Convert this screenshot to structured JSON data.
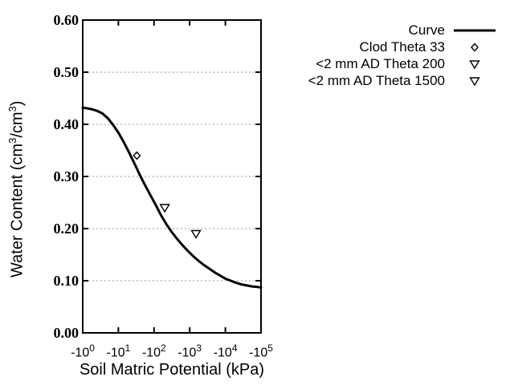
{
  "figure": {
    "background": "#ffffff",
    "axis_color": "#000000",
    "grid_color": "#999999",
    "curve_color": "#000000"
  },
  "axes": {
    "x_title": "Soil Matric Potential (kPa)",
    "y_title_parts": {
      "pre": "Water Content (cm",
      "sup1": "3",
      "mid": "/cm",
      "sup2": "3",
      "post": ")"
    },
    "x_ticks": [
      {
        "base": "-10",
        "exp": "0"
      },
      {
        "base": "-10",
        "exp": "1"
      },
      {
        "base": "-10",
        "exp": "2"
      },
      {
        "base": "-10",
        "exp": "3"
      },
      {
        "base": "-10",
        "exp": "4"
      },
      {
        "base": "-10",
        "exp": "5"
      }
    ],
    "y_ticks": [
      "0.60",
      "0.50",
      "0.40",
      "0.30",
      "0.20",
      "0.10",
      "0.00"
    ]
  },
  "legend": {
    "items": [
      {
        "label": "Curve",
        "marker": "line"
      },
      {
        "label": "Clod Theta 33",
        "marker": "diamond"
      },
      {
        "label": "<2 mm AD Theta 200",
        "marker": "triangle-down"
      },
      {
        "label": "<2 mm AD Theta 1500",
        "marker": "triangle-down"
      }
    ]
  },
  "chart_data": {
    "type": "line",
    "title": "",
    "xlabel": "Soil Matric Potential (kPa)",
    "ylabel": "Water Content (cm3/cm3)",
    "x_scale": "log10 of negative kPa, -10^0 to -10^5",
    "xlim_log10": [
      0,
      5
    ],
    "ylim": [
      0.0,
      0.6
    ],
    "y_tick_step": 0.1,
    "y_gridlines": [
      0.1,
      0.2,
      0.3,
      0.4,
      0.5
    ],
    "grid_style": "dotted horizontal only",
    "legend_position": "top-right outside plot",
    "series": [
      {
        "name": "Curve",
        "type": "line",
        "points_log10_theta": [
          [
            0.0,
            0.432
          ],
          [
            0.1,
            0.431
          ],
          [
            0.25,
            0.429
          ],
          [
            0.4,
            0.426
          ],
          [
            0.55,
            0.421
          ],
          [
            0.7,
            0.412
          ],
          [
            0.85,
            0.399
          ],
          [
            1.0,
            0.384
          ],
          [
            1.15,
            0.366
          ],
          [
            1.3,
            0.346
          ],
          [
            1.45,
            0.325
          ],
          [
            1.6,
            0.303
          ],
          [
            1.75,
            0.283
          ],
          [
            1.9,
            0.264
          ],
          [
            2.05,
            0.245
          ],
          [
            2.2,
            0.225
          ],
          [
            2.35,
            0.208
          ],
          [
            2.5,
            0.193
          ],
          [
            2.65,
            0.18
          ],
          [
            2.8,
            0.168
          ],
          [
            2.95,
            0.157
          ],
          [
            3.1,
            0.147
          ],
          [
            3.25,
            0.138
          ],
          [
            3.4,
            0.13
          ],
          [
            3.55,
            0.123
          ],
          [
            3.7,
            0.116
          ],
          [
            3.85,
            0.11
          ],
          [
            4.0,
            0.104
          ],
          [
            4.15,
            0.1
          ],
          [
            4.3,
            0.096
          ],
          [
            4.45,
            0.093
          ],
          [
            4.6,
            0.091
          ],
          [
            4.75,
            0.089
          ],
          [
            4.9,
            0.088
          ],
          [
            5.0,
            0.087
          ]
        ]
      },
      {
        "name": "Clod Theta 33",
        "type": "scatter",
        "marker": "diamond",
        "points_kpa_theta": [
          [
            -33,
            0.34
          ]
        ]
      },
      {
        "name": "<2 mm AD Theta 200",
        "type": "scatter",
        "marker": "triangle-down",
        "points_kpa_theta": [
          [
            -200,
            0.24
          ]
        ]
      },
      {
        "name": "<2 mm AD Theta 1500",
        "type": "scatter",
        "marker": "triangle-down",
        "points_kpa_theta": [
          [
            -1500,
            0.19
          ]
        ]
      }
    ]
  }
}
